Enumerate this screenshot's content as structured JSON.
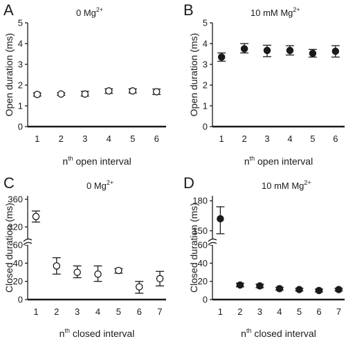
{
  "chart_data": [
    {
      "type": "scatter",
      "panel": "A",
      "condition": "0 Mg",
      "condition_sup": "2+",
      "xlabel": "n",
      "xlabel_sup": "th",
      "xlabel_rest": " open interval",
      "ylabel": "Open duration (ms)",
      "marker": "open",
      "x": [
        1,
        2,
        3,
        4,
        5,
        6
      ],
      "values": [
        1.55,
        1.57,
        1.57,
        1.72,
        1.72,
        1.68
      ],
      "err_lo": [
        1.47,
        1.51,
        1.47,
        1.6,
        1.62,
        1.55
      ],
      "err_hi": [
        1.62,
        1.63,
        1.7,
        1.82,
        1.82,
        1.81
      ],
      "xlim": [
        0.6,
        6.4
      ],
      "ylim": [
        0,
        5
      ],
      "yticks": [
        0,
        1,
        2,
        3,
        4,
        5
      ]
    },
    {
      "type": "scatter",
      "panel": "B",
      "condition": "10 mM Mg",
      "condition_sup": "2+",
      "xlabel": "n",
      "xlabel_sup": "th",
      "xlabel_rest": " open interval",
      "ylabel": "Open duration (ms)",
      "marker": "filled",
      "x": [
        1,
        2,
        3,
        4,
        5,
        6
      ],
      "values": [
        3.35,
        3.75,
        3.67,
        3.67,
        3.53,
        3.63
      ],
      "err_lo": [
        3.15,
        3.55,
        3.37,
        3.45,
        3.35,
        3.35
      ],
      "err_hi": [
        3.55,
        4.0,
        3.92,
        3.9,
        3.72,
        3.9
      ],
      "xlim": [
        0.6,
        6.4
      ],
      "ylim": [
        0,
        5
      ],
      "yticks": [
        0,
        1,
        2,
        3,
        4,
        5
      ]
    },
    {
      "type": "scatter",
      "panel": "C",
      "condition": "0 Mg",
      "condition_sup": "2+",
      "xlabel": "n",
      "xlabel_sup": "th",
      "xlabel_rest": " closed interval",
      "ylabel": "Closed duration (ms)",
      "marker": "open",
      "x": [
        1,
        2,
        3,
        4,
        5,
        6,
        7
      ],
      "values": [
        335,
        37,
        30,
        28,
        32,
        14,
        23
      ],
      "err_lo": [
        327,
        28,
        24,
        20,
        29,
        7,
        15
      ],
      "err_hi": [
        343,
        46,
        37,
        37,
        34,
        20,
        31
      ],
      "xlim": [
        0.6,
        7.3
      ],
      "ylim_lower": [
        0,
        70
      ],
      "ylim_upper": [
        300,
        365
      ],
      "yticks_lower": [
        0,
        20,
        40,
        60
      ],
      "yticks_upper": [
        320,
        360
      ]
    },
    {
      "type": "scatter",
      "panel": "D",
      "condition": "10 mM Mg",
      "condition_sup": "2+",
      "xlabel": "n",
      "xlabel_sup": "th",
      "xlabel_rest": " closed interval",
      "ylabel": "Closed duration (ms)",
      "marker": "filled",
      "x": [
        1,
        2,
        3,
        4,
        5,
        6,
        7
      ],
      "values": [
        162,
        16,
        15,
        12,
        11,
        10,
        11
      ],
      "err_lo": [
        147,
        14,
        13,
        10.5,
        9.5,
        8.5,
        9.5
      ],
      "err_hi": [
        174,
        18,
        17,
        13.5,
        12.5,
        11.5,
        12.5
      ],
      "xlim": [
        0.6,
        7.3
      ],
      "ylim_lower": [
        0,
        70
      ],
      "ylim_upper": [
        140,
        185
      ],
      "yticks_lower": [
        0,
        20,
        40,
        60
      ],
      "yticks_upper": [
        150,
        180
      ]
    }
  ]
}
